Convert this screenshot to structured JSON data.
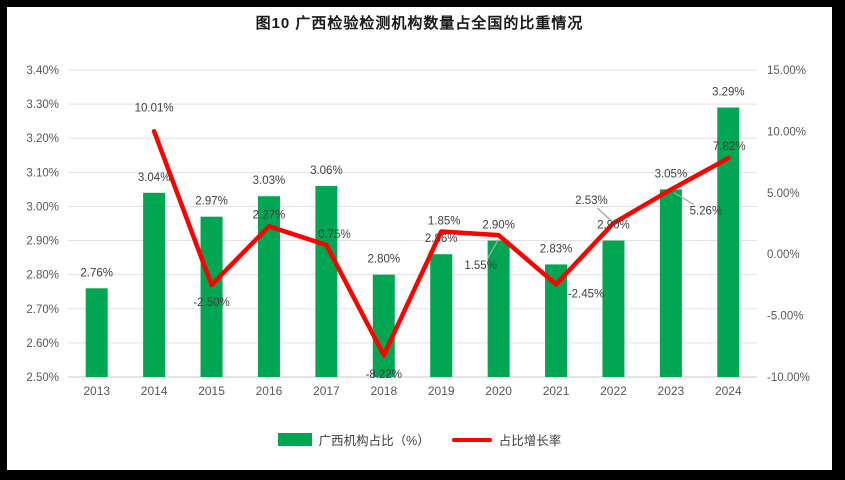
{
  "frame": {
    "background": "#FFFFFF",
    "border_color": "#000000"
  },
  "chart_data": {
    "type": "combo-bar-line",
    "title": "图10 广西检验检测机构数量占全国的比重情况",
    "categories": [
      "2013",
      "2014",
      "2015",
      "2016",
      "2017",
      "2018",
      "2019",
      "2020",
      "2021",
      "2022",
      "2023",
      "2024"
    ],
    "series": [
      {
        "name": "广西机构占比（%）",
        "type": "bar",
        "axis": "left",
        "color": "#00A651",
        "values": [
          2.76,
          3.04,
          2.97,
          3.03,
          3.06,
          2.8,
          2.86,
          2.9,
          2.83,
          2.9,
          3.05,
          3.29
        ],
        "labels": [
          "2.76%",
          "3.04%",
          "2.97%",
          "3.03%",
          "3.06%",
          "2.80%",
          "2.86%",
          "2.90%",
          "2.83%",
          "2.90%",
          "3.05%",
          "3.29%"
        ]
      },
      {
        "name": "占比增长率",
        "type": "line",
        "axis": "right",
        "color": "#FF0000",
        "values": [
          null,
          10.01,
          -2.5,
          2.27,
          0.75,
          -8.22,
          1.85,
          1.55,
          -2.45,
          2.53,
          5.26,
          7.82
        ],
        "labels": [
          null,
          "10.01%",
          "-2.50%",
          "2.27%",
          "0.75%",
          "-8.22%",
          "1.85%",
          "1.55%",
          "-2.45%",
          "2.53%",
          "5.26%",
          "7.82%"
        ]
      }
    ],
    "left_axis": {
      "min": 2.5,
      "max": 3.4,
      "step": 0.1,
      "tick_labels": [
        "3.40%",
        "3.30%",
        "3.20%",
        "3.10%",
        "3.00%",
        "2.90%",
        "2.80%",
        "2.70%",
        "2.60%",
        "2.50%"
      ]
    },
    "right_axis": {
      "min": -10,
      "max": 15,
      "step": 5,
      "tick_labels": [
        "15.00%",
        "10.00%",
        "5.00%",
        "0.00%",
        "-5.00%",
        "-10.00%"
      ]
    },
    "grid": true,
    "legend_position": "bottom",
    "colors": {
      "bar": "#00A651",
      "line": "#FF0000",
      "data_label": "#404040",
      "axis_label": "#595959",
      "gridline": "#E2E2E2",
      "axis_line": "#C9C9C9",
      "leader": "#A6A6A6"
    }
  }
}
